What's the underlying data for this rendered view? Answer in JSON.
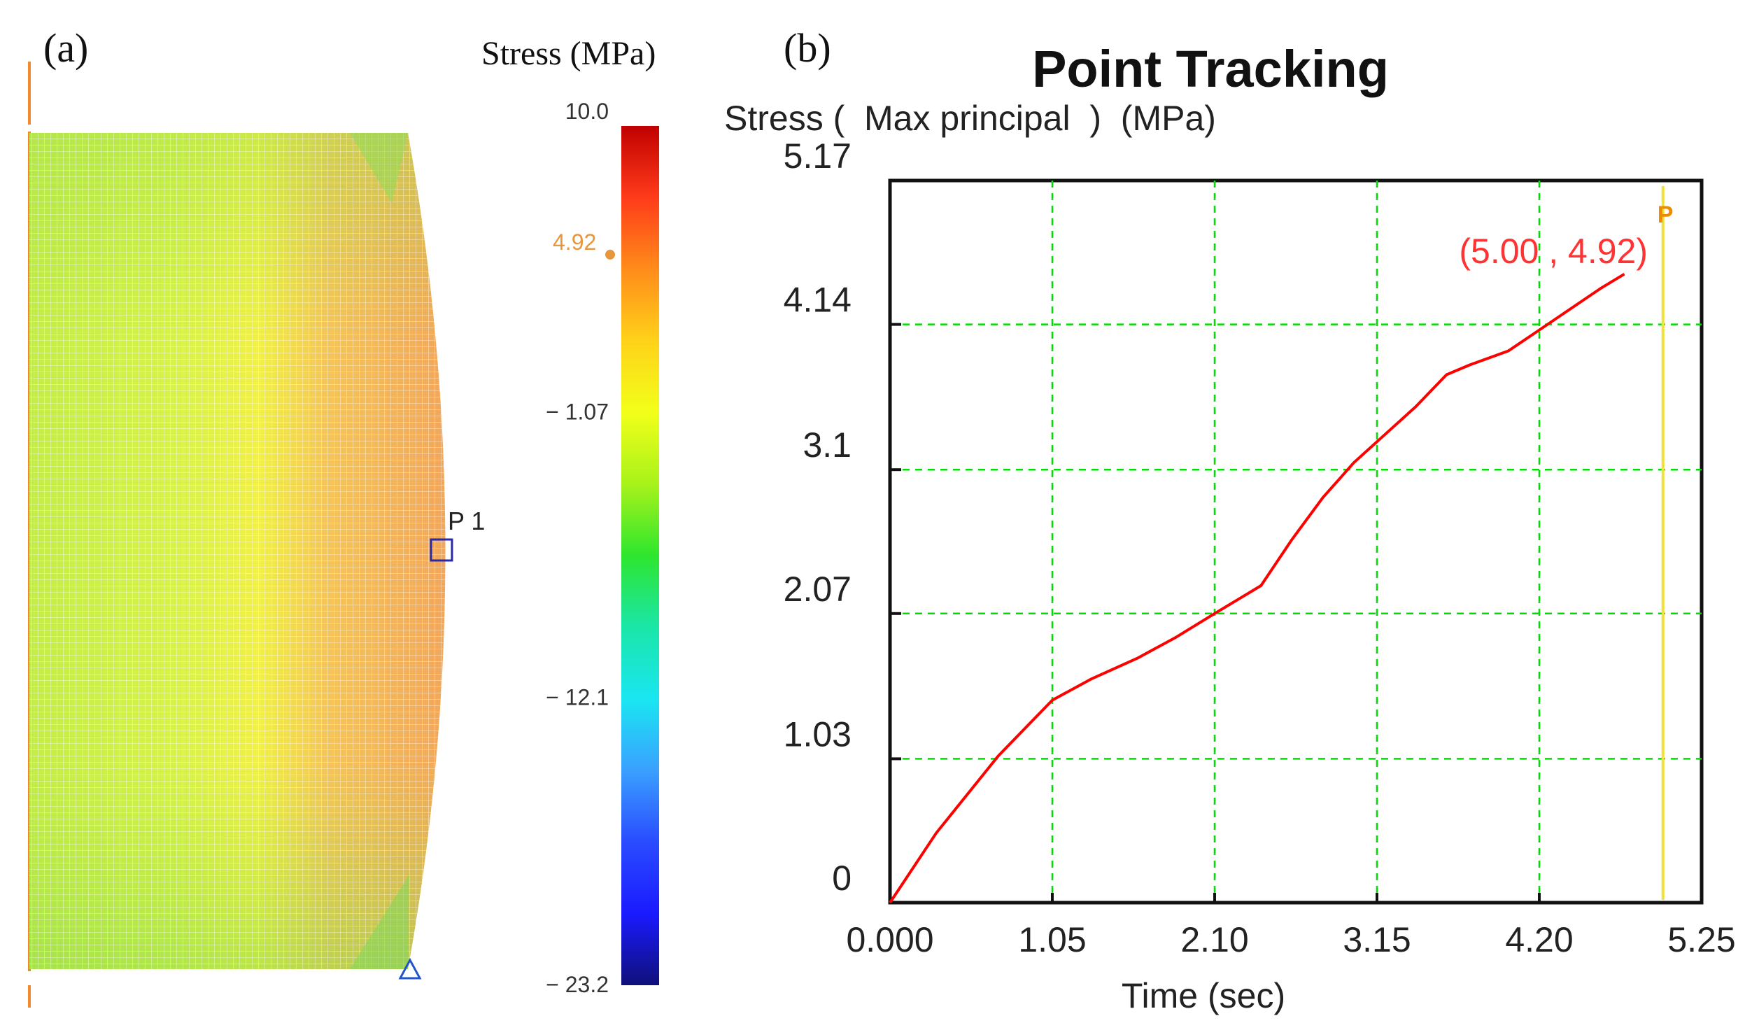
{
  "panel_a": {
    "label": "(a)",
    "colorbar_title": "Stress (MPa)",
    "colorbar_ticks": [
      "10.0",
      "− 1.07",
      "− 12.1",
      "− 23.2"
    ],
    "colorbar_tick_values": [
      10.0,
      -1.07,
      -12.1,
      -23.2
    ],
    "colorbar_range": [
      -23.2,
      10.0
    ],
    "marker_value_label": "4.92",
    "marker_value": 4.92,
    "point_label": "P 1",
    "colors": {
      "tick_text": "#333333",
      "marker_text": "#e8963c",
      "point_box": "#2a2aa8",
      "support_triangle": "#2255cc",
      "axis_line": "#f08a2a",
      "colormap": [
        "#c00000",
        "#ff3b1a",
        "#ff8c1a",
        "#ffd21a",
        "#f2ff1a",
        "#a8f21a",
        "#2ee62e",
        "#1ae6a8",
        "#1ae6f2",
        "#3aa0ff",
        "#2a4cff",
        "#1a1aff",
        "#10107a"
      ]
    }
  },
  "panel_b": {
    "label": "(b)",
    "annotation": "(5.00 , 4.92)",
    "annotation_marker": "P",
    "colors": {
      "line": "#ff0000",
      "grid": "#00dd00",
      "annotation": "#ff3333",
      "cursor": "#f0e23a",
      "marker": "#f08a00"
    }
  },
  "chart_data": {
    "type": "line",
    "title": "Point Tracking",
    "ylabel": "Stress (  Max principal  )  (MPa)",
    "xlabel": "Time (sec)",
    "x_tick_labels": [
      "0.000",
      "1.05",
      "2.10",
      "3.15",
      "4.20",
      "5.25"
    ],
    "x_ticks": [
      0,
      1.05,
      2.1,
      3.15,
      4.2,
      5.25
    ],
    "y_tick_labels": [
      "0",
      "1.03",
      "2.07",
      "3.1",
      "4.14",
      "5.17"
    ],
    "y_ticks": [
      0,
      1.03,
      2.07,
      3.1,
      4.14,
      5.17
    ],
    "xlim": [
      0,
      5.25
    ],
    "ylim": [
      0,
      5.17
    ],
    "grid": true,
    "cursor_x": 5.0,
    "series": [
      {
        "name": "Stress (Max principal)",
        "x": [
          0,
          0.3,
          0.7,
          1.05,
          1.3,
          1.6,
          1.85,
          2.1,
          2.4,
          2.6,
          2.8,
          3.0,
          3.2,
          3.4,
          3.6,
          3.75,
          4.0,
          4.2,
          4.4,
          4.6,
          4.75
        ],
        "y": [
          0,
          0.5,
          1.05,
          1.45,
          1.6,
          1.75,
          1.9,
          2.07,
          2.27,
          2.6,
          2.9,
          3.15,
          3.35,
          3.55,
          3.78,
          3.85,
          3.95,
          4.1,
          4.25,
          4.4,
          4.5
        ]
      }
    ]
  }
}
